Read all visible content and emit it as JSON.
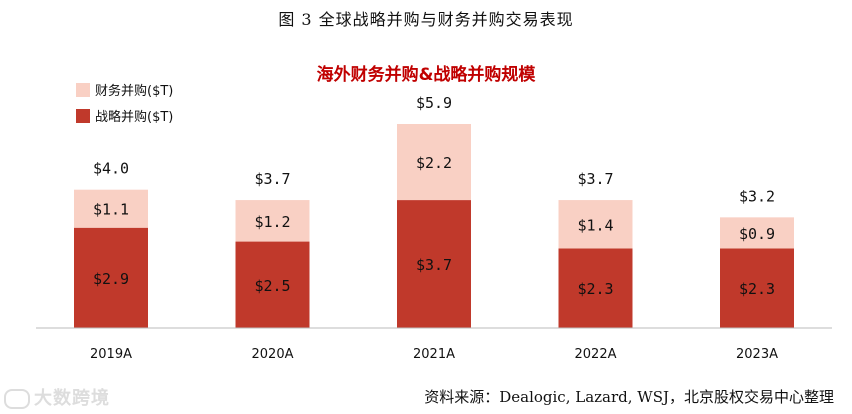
{
  "caption": "图 3 全球战略并购与财务并购交易表现",
  "source": "资料来源：Dealogic, Lazard, WSJ，北京股权交易中心整理",
  "watermark": "大数跨境",
  "chart_data": {
    "type": "bar",
    "stacked": true,
    "title": "海外财务并购&战略并购规模",
    "categories": [
      "2019A",
      "2020A",
      "2021A",
      "2022A",
      "2023A"
    ],
    "series": [
      {
        "name": "战略并购($T)",
        "color": "#C0392B",
        "values": [
          2.9,
          2.5,
          3.7,
          2.3,
          2.3
        ],
        "labels": [
          "$2.9",
          "$2.5",
          "$3.7",
          "$2.3",
          "$2.3"
        ]
      },
      {
        "name": "财务并购($T)",
        "color": "#F9D0C4",
        "values": [
          1.1,
          1.2,
          2.2,
          1.4,
          0.9
        ],
        "labels": [
          "$1.1",
          "$1.2",
          "$2.2",
          "$1.4",
          "$0.9"
        ]
      }
    ],
    "totals": [
      4.0,
      3.7,
      5.9,
      3.7,
      3.2
    ],
    "total_labels": [
      "$4.0",
      "$3.7",
      "$5.9",
      "$3.7",
      "$3.2"
    ],
    "legend": {
      "position": "top-left",
      "order": [
        "财务并购($T)",
        "战略并购($T)"
      ]
    },
    "ylim": [
      0,
      5.9
    ],
    "grid": false,
    "title_color": "#C00000"
  }
}
